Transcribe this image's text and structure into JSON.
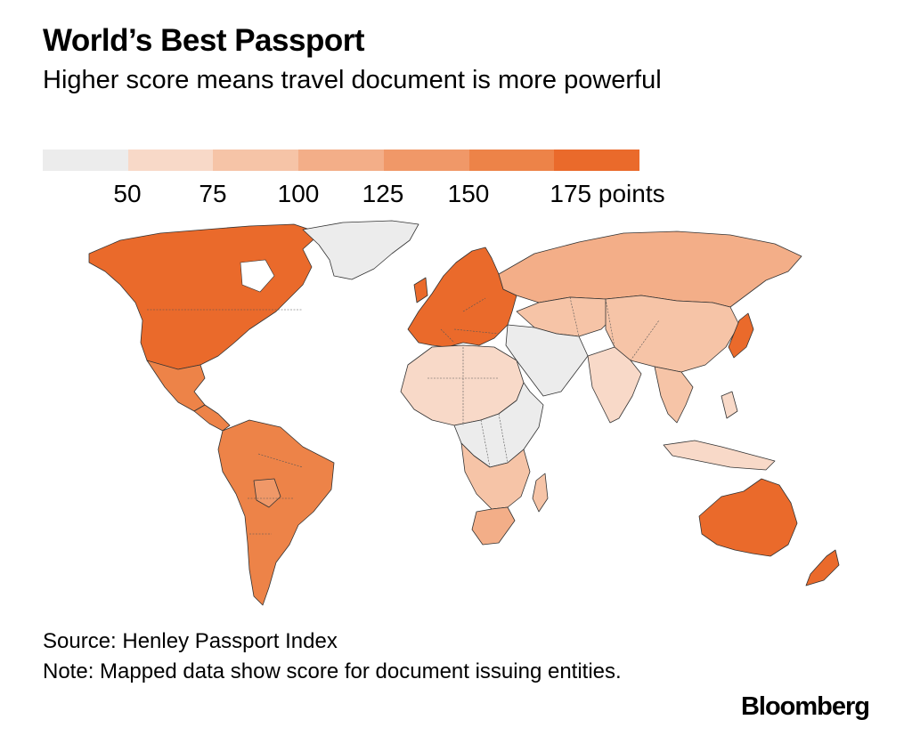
{
  "title": "World’s Best Passport",
  "subtitle": "Higher score means travel document is more powerful",
  "legend": {
    "bins": [
      {
        "color": "#ececec"
      },
      {
        "color": "#f8d9c8"
      },
      {
        "color": "#f6c4a7"
      },
      {
        "color": "#f3ae88"
      },
      {
        "color": "#f09868"
      },
      {
        "color": "#ed8348"
      },
      {
        "color": "#ea6a2b"
      }
    ],
    "ticks": [
      "50",
      "75",
      "100",
      "125",
      "150",
      "175 points"
    ]
  },
  "map": {
    "regions": [
      {
        "name": "North America",
        "bin": 6
      },
      {
        "name": "Greenland",
        "bin": 0
      },
      {
        "name": "Mexico",
        "bin": 5
      },
      {
        "name": "Central America",
        "bin": 5
      },
      {
        "name": "South America",
        "bin": 5
      },
      {
        "name": "Bolivia",
        "bin": 4
      },
      {
        "name": "Europe",
        "bin": 6
      },
      {
        "name": "Russia",
        "bin": 3
      },
      {
        "name": "Central Asia",
        "bin": 2
      },
      {
        "name": "Middle East",
        "bin": 0
      },
      {
        "name": "China",
        "bin": 2
      },
      {
        "name": "India",
        "bin": 1
      },
      {
        "name": "Southeast Asia",
        "bin": 2
      },
      {
        "name": "Japan",
        "bin": 6
      },
      {
        "name": "North Africa",
        "bin": 1
      },
      {
        "name": "Central Africa",
        "bin": 0
      },
      {
        "name": "Southern Africa",
        "bin": 2
      },
      {
        "name": "South Africa",
        "bin": 3
      },
      {
        "name": "Australia",
        "bin": 6
      },
      {
        "name": "New Zealand",
        "bin": 6
      },
      {
        "name": "Indonesia",
        "bin": 1
      }
    ]
  },
  "footer": {
    "source": "Source: Henley Passport Index",
    "note": "Note: Mapped data show score for document issuing entities."
  },
  "brand": "Bloomberg"
}
